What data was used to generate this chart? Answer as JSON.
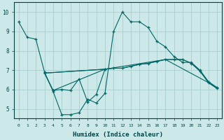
{
  "xlabel": "Humidex (Indice chaleur)",
  "bg_color": "#cce8e8",
  "grid_color": "#aacece",
  "line_color": "#006666",
  "xlim": [
    -0.5,
    23.5
  ],
  "ylim": [
    4.5,
    10.5
  ],
  "yticks": [
    5,
    6,
    7,
    8,
    9,
    10
  ],
  "xticks": [
    0,
    1,
    2,
    3,
    4,
    5,
    6,
    7,
    8,
    9,
    10,
    11,
    12,
    13,
    14,
    15,
    16,
    17,
    18,
    19,
    20,
    21,
    22,
    23
  ],
  "line1_x": [
    0,
    1,
    2,
    3,
    4,
    5,
    6,
    7,
    8,
    9,
    10,
    11,
    12,
    13,
    14,
    15,
    16,
    17,
    18,
    19,
    20,
    21,
    22,
    23
  ],
  "line1_y": [
    9.5,
    8.7,
    8.6,
    6.9,
    5.9,
    4.7,
    4.7,
    4.8,
    5.5,
    5.3,
    5.8,
    9.0,
    10.0,
    9.5,
    9.5,
    9.2,
    8.5,
    8.2,
    7.7,
    7.4,
    7.4,
    7.0,
    6.4,
    6.1
  ],
  "line2_x": [
    3,
    4,
    5,
    6,
    7,
    8,
    9,
    10
  ],
  "line2_y": [
    6.85,
    5.95,
    6.0,
    5.95,
    6.55,
    5.35,
    5.75,
    7.05
  ],
  "line3_x": [
    3,
    4,
    10,
    11,
    12,
    13,
    14,
    15,
    16,
    17,
    18,
    19,
    20,
    21,
    22,
    23
  ],
  "line3_y": [
    6.85,
    5.95,
    7.05,
    7.1,
    7.1,
    7.2,
    7.3,
    7.35,
    7.45,
    7.55,
    7.55,
    7.55,
    7.35,
    6.95,
    6.35,
    6.05
  ],
  "line4_x": [
    3,
    10,
    11,
    12,
    13,
    14,
    15,
    16,
    17,
    18,
    19,
    20,
    21,
    22,
    23
  ],
  "line4_y": [
    6.85,
    7.05,
    7.1,
    7.1,
    7.2,
    7.3,
    7.35,
    7.45,
    7.55,
    7.55,
    7.55,
    7.35,
    6.95,
    6.35,
    6.05
  ],
  "line5_x": [
    3,
    10,
    17,
    22,
    23
  ],
  "line5_y": [
    6.85,
    7.05,
    7.55,
    6.35,
    6.05
  ]
}
